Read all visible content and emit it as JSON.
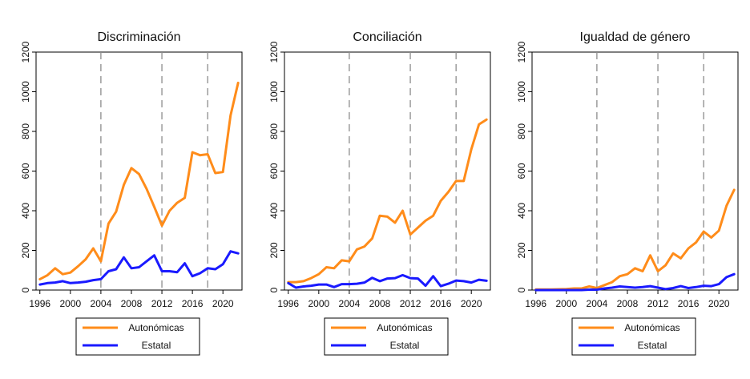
{
  "colors": {
    "autonomicas": "#ff8c1a",
    "estatal": "#1a1aff",
    "axis": "#000000",
    "refline": "#8c8c8c"
  },
  "chart_data": [
    {
      "type": "line",
      "title": "Discriminación",
      "xlabel": "",
      "ylabel": "",
      "xlim": [
        1995.5,
        2022.5
      ],
      "ylim": [
        0,
        1200
      ],
      "xticks": [
        1996,
        2000,
        2004,
        2008,
        2012,
        2016,
        2020
      ],
      "yticks": [
        0,
        200,
        400,
        600,
        800,
        1000,
        1200
      ],
      "reference_lines_x": [
        2004,
        2012,
        2018
      ],
      "x": [
        1996,
        1997,
        1998,
        1999,
        2000,
        2001,
        2002,
        2003,
        2004,
        2005,
        2006,
        2007,
        2008,
        2009,
        2010,
        2011,
        2012,
        2013,
        2014,
        2015,
        2016,
        2017,
        2018,
        2019,
        2020,
        2021,
        2022
      ],
      "series": [
        {
          "name": "Autonómicas",
          "color_key": "autonomicas",
          "values": [
            55,
            75,
            110,
            80,
            88,
            120,
            155,
            210,
            145,
            335,
            395,
            530,
            615,
            585,
            510,
            420,
            325,
            400,
            440,
            465,
            695,
            680,
            685,
            590,
            595,
            880,
            1045
          ]
        },
        {
          "name": "Estatal",
          "color_key": "estatal",
          "values": [
            28,
            35,
            38,
            45,
            35,
            38,
            42,
            50,
            55,
            95,
            105,
            165,
            110,
            115,
            145,
            175,
            95,
            95,
            90,
            135,
            70,
            85,
            110,
            105,
            130,
            195,
            185
          ]
        }
      ],
      "legend": {
        "position": "bottom",
        "entries": [
          "Autonómicas",
          "Estatal"
        ]
      }
    },
    {
      "type": "line",
      "title": "Conciliación",
      "xlabel": "",
      "ylabel": "",
      "xlim": [
        1995.5,
        2022.5
      ],
      "ylim": [
        0,
        1200
      ],
      "xticks": [
        1996,
        2000,
        2004,
        2008,
        2012,
        2016,
        2020
      ],
      "yticks": [
        0,
        200,
        400,
        600,
        800,
        1000,
        1200
      ],
      "reference_lines_x": [
        2004,
        2012,
        2018
      ],
      "x": [
        1996,
        1997,
        1998,
        1999,
        2000,
        2001,
        2002,
        2003,
        2004,
        2005,
        2006,
        2007,
        2008,
        2009,
        2010,
        2011,
        2012,
        2013,
        2014,
        2015,
        2016,
        2017,
        2018,
        2019,
        2020,
        2021,
        2022
      ],
      "series": [
        {
          "name": "Autonómicas",
          "color_key": "autonomicas",
          "values": [
            40,
            40,
            45,
            60,
            80,
            115,
            110,
            150,
            145,
            205,
            220,
            260,
            375,
            370,
            340,
            400,
            280,
            315,
            350,
            375,
            450,
            495,
            550,
            550,
            710,
            835,
            860
          ]
        },
        {
          "name": "Estatal",
          "color_key": "estatal",
          "values": [
            35,
            12,
            18,
            22,
            28,
            28,
            15,
            30,
            30,
            32,
            38,
            62,
            45,
            58,
            60,
            75,
            60,
            58,
            22,
            70,
            20,
            32,
            48,
            45,
            38,
            52,
            47
          ]
        }
      ],
      "legend": {
        "position": "bottom",
        "entries": [
          "Autonómicas",
          "Estatal"
        ]
      }
    },
    {
      "type": "line",
      "title": "Igualdad de género",
      "xlabel": "",
      "ylabel": "",
      "xlim": [
        1995.5,
        2022.5
      ],
      "ylim": [
        0,
        1200
      ],
      "xticks": [
        1996,
        2000,
        2004,
        2008,
        2012,
        2016,
        2020
      ],
      "yticks": [
        0,
        200,
        400,
        600,
        800,
        1000,
        1200
      ],
      "reference_lines_x": [
        2004,
        2012,
        2018
      ],
      "x": [
        1996,
        1997,
        1998,
        1999,
        2000,
        2001,
        2002,
        2003,
        2004,
        2005,
        2006,
        2007,
        2008,
        2009,
        2010,
        2011,
        2012,
        2013,
        2014,
        2015,
        2016,
        2017,
        2018,
        2019,
        2020,
        2021,
        2022
      ],
      "series": [
        {
          "name": "Autonómicas",
          "color_key": "autonomicas",
          "values": [
            3,
            3,
            3,
            4,
            5,
            8,
            8,
            18,
            10,
            25,
            40,
            70,
            80,
            110,
            95,
            175,
            95,
            125,
            185,
            160,
            210,
            240,
            295,
            265,
            300,
            425,
            505
          ]
        },
        {
          "name": "Estatal",
          "color_key": "estatal",
          "values": [
            0,
            0,
            0,
            0,
            0,
            0,
            0,
            2,
            2,
            8,
            12,
            18,
            15,
            12,
            15,
            20,
            12,
            5,
            10,
            20,
            10,
            15,
            22,
            20,
            30,
            65,
            80
          ]
        }
      ],
      "legend": {
        "position": "bottom",
        "entries": [
          "Autonómicas",
          "Estatal"
        ]
      }
    }
  ]
}
